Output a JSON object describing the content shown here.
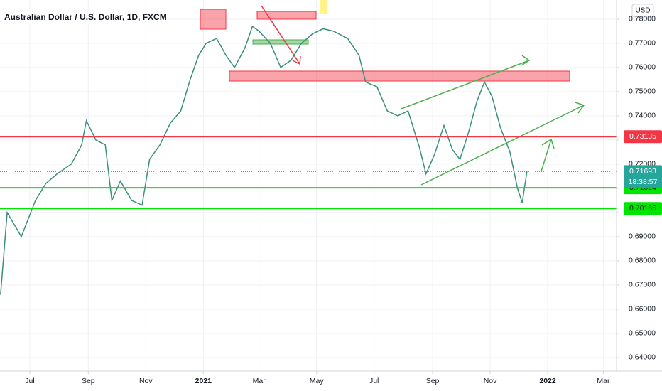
{
  "chart_data": {
    "type": "line",
    "title": "Australian Dollar / U.S. Dollar, 1D, FXCM",
    "currency": "USD",
    "countdown": "18:38:57",
    "xlim": [
      -31.6,
      622
    ],
    "ylim": [
      0.6344,
      0.7879
    ],
    "xticks": [
      {
        "value": 0,
        "label": "Jul"
      },
      {
        "value": 62,
        "label": "Sep"
      },
      {
        "value": 123,
        "label": "Nov"
      },
      {
        "value": 184,
        "label": "2021"
      },
      {
        "value": 243,
        "label": "Mar"
      },
      {
        "value": 304,
        "label": "May"
      },
      {
        "value": 365,
        "label": "Jul"
      },
      {
        "value": 427,
        "label": "Sep"
      },
      {
        "value": 488,
        "label": "Nov"
      },
      {
        "value": 549,
        "label": "2022"
      },
      {
        "value": 608,
        "label": "Mar"
      }
    ],
    "yticks": [
      {
        "value": 0.64,
        "label": "0.64000"
      },
      {
        "value": 0.65,
        "label": "0.65000"
      },
      {
        "value": 0.66,
        "label": "0.66000"
      },
      {
        "value": 0.67,
        "label": "0.67000"
      },
      {
        "value": 0.68,
        "label": "0.68000"
      },
      {
        "value": 0.69,
        "label": "0.69000"
      },
      {
        "value": 0.7,
        "label": "0.70000"
      },
      {
        "value": 0.71,
        "label": "0.71000"
      },
      {
        "value": 0.72,
        "label": "0.72000"
      },
      {
        "value": 0.73,
        "label": "0.73000"
      },
      {
        "value": 0.74,
        "label": "0.74000"
      },
      {
        "value": 0.75,
        "label": "0.75000"
      },
      {
        "value": 0.76,
        "label": "0.76000"
      },
      {
        "value": 0.77,
        "label": "0.77000"
      },
      {
        "value": 0.78,
        "label": "0.78000"
      }
    ],
    "grid": true,
    "series": [
      {
        "color": "#3a8f7d",
        "x": [
          -31,
          -24,
          -9,
          6,
          17,
          29,
          44,
          55,
          60,
          70,
          80,
          87,
          96,
          108,
          119,
          127,
          138,
          149,
          160,
          170,
          179,
          187,
          198,
          208,
          217,
          228,
          236,
          243,
          255,
          266,
          277,
          288,
          300,
          311,
          322,
          337,
          349,
          356,
          368,
          379,
          390,
          401,
          413,
          420,
          429,
          439,
          448,
          456,
          465,
          474,
          482,
          490,
          499,
          509,
          517,
          522,
          527
        ],
        "values": [
          0.666,
          0.7,
          0.69,
          0.705,
          0.712,
          0.716,
          0.72,
          0.728,
          0.738,
          0.73,
          0.728,
          0.705,
          0.713,
          0.705,
          0.703,
          0.722,
          0.728,
          0.737,
          0.742,
          0.755,
          0.765,
          0.77,
          0.772,
          0.765,
          0.76,
          0.768,
          0.777,
          0.775,
          0.77,
          0.76,
          0.763,
          0.77,
          0.774,
          0.776,
          0.775,
          0.772,
          0.765,
          0.754,
          0.752,
          0.742,
          0.74,
          0.742,
          0.727,
          0.716,
          0.724,
          0.736,
          0.726,
          0.722,
          0.733,
          0.746,
          0.754,
          0.748,
          0.735,
          0.725,
          0.71,
          0.704,
          0.717
        ]
      }
    ],
    "levels": [
      {
        "value": 0.73135,
        "color": "#f23645"
      },
      {
        "value": 0.71024,
        "color": "#00e600"
      },
      {
        "value": 0.70165,
        "color": "#00e600"
      }
    ],
    "last_price": {
      "value": 0.71693,
      "color": "#26a69a"
    }
  }
}
